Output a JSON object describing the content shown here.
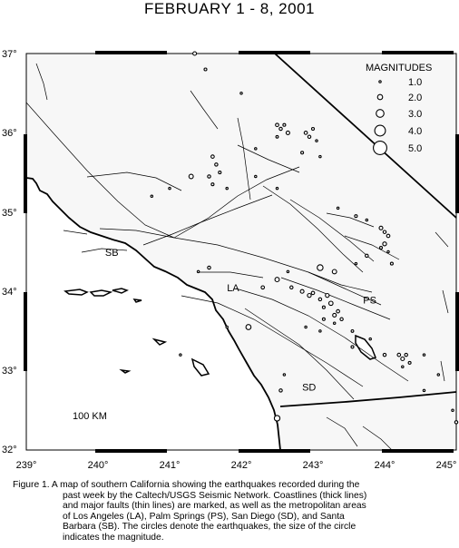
{
  "title": "FEBRUARY 1 - 8, 2001",
  "axes": {
    "lon_ticks": [
      "239°",
      "240°",
      "241°",
      "242°",
      "243°",
      "244°",
      "245°"
    ],
    "lat_ticks": [
      "37°",
      "36°",
      "35°",
      "34°",
      "33°",
      "32°"
    ]
  },
  "legend": {
    "title": "MAGNITUDES",
    "items": [
      {
        "label": "1.0",
        "mag": 1.0
      },
      {
        "label": "2.0",
        "mag": 2.0
      },
      {
        "label": "3.0",
        "mag": 3.0
      },
      {
        "label": "4.0",
        "mag": 4.0
      },
      {
        "label": "5.0",
        "mag": 5.0
      }
    ]
  },
  "places": [
    {
      "abbr": "SB",
      "lon": 240.1,
      "lat": 34.45
    },
    {
      "abbr": "LA",
      "lon": 241.8,
      "lat": 34.0
    },
    {
      "abbr": "PS",
      "lon": 243.7,
      "lat": 33.85
    },
    {
      "abbr": "SD",
      "lon": 242.85,
      "lat": 32.75
    }
  ],
  "scale_label": "100 KM",
  "earthquakes": [
    {
      "lon": 241.35,
      "lat": 37.0,
      "mag": 1.5
    },
    {
      "lon": 241.5,
      "lat": 36.8,
      "mag": 1.2
    },
    {
      "lon": 242.0,
      "lat": 36.5,
      "mag": 1.0
    },
    {
      "lon": 242.5,
      "lat": 36.1,
      "mag": 1.4
    },
    {
      "lon": 242.55,
      "lat": 36.05,
      "mag": 1.3
    },
    {
      "lon": 242.6,
      "lat": 36.1,
      "mag": 1.2
    },
    {
      "lon": 242.65,
      "lat": 36.0,
      "mag": 1.5
    },
    {
      "lon": 242.5,
      "lat": 35.95,
      "mag": 1.1
    },
    {
      "lon": 242.9,
      "lat": 36.0,
      "mag": 1.4
    },
    {
      "lon": 242.95,
      "lat": 35.95,
      "mag": 1.3
    },
    {
      "lon": 243.0,
      "lat": 36.05,
      "mag": 1.2
    },
    {
      "lon": 243.05,
      "lat": 35.9,
      "mag": 1.0
    },
    {
      "lon": 242.2,
      "lat": 35.8,
      "mag": 1.0
    },
    {
      "lon": 242.85,
      "lat": 35.75,
      "mag": 1.2
    },
    {
      "lon": 243.1,
      "lat": 35.7,
      "mag": 1.0
    },
    {
      "lon": 241.6,
      "lat": 35.7,
      "mag": 1.4
    },
    {
      "lon": 241.65,
      "lat": 35.6,
      "mag": 1.3
    },
    {
      "lon": 241.7,
      "lat": 35.5,
      "mag": 1.2
    },
    {
      "lon": 241.55,
      "lat": 35.45,
      "mag": 1.3
    },
    {
      "lon": 241.6,
      "lat": 35.35,
      "mag": 1.2
    },
    {
      "lon": 241.3,
      "lat": 35.45,
      "mag": 1.8
    },
    {
      "lon": 241.0,
      "lat": 35.3,
      "mag": 1.0
    },
    {
      "lon": 242.2,
      "lat": 35.45,
      "mag": 1.0
    },
    {
      "lon": 242.5,
      "lat": 35.3,
      "mag": 1.0
    },
    {
      "lon": 241.8,
      "lat": 35.3,
      "mag": 1.0
    },
    {
      "lon": 240.75,
      "lat": 35.2,
      "mag": 1.0
    },
    {
      "lon": 243.35,
      "lat": 35.05,
      "mag": 1.0
    },
    {
      "lon": 243.6,
      "lat": 34.95,
      "mag": 1.2
    },
    {
      "lon": 243.75,
      "lat": 34.9,
      "mag": 1.0
    },
    {
      "lon": 243.95,
      "lat": 34.8,
      "mag": 1.5
    },
    {
      "lon": 244.0,
      "lat": 34.75,
      "mag": 1.3
    },
    {
      "lon": 244.05,
      "lat": 34.7,
      "mag": 1.4
    },
    {
      "lon": 244.0,
      "lat": 34.6,
      "mag": 1.6
    },
    {
      "lon": 243.95,
      "lat": 34.55,
      "mag": 1.2
    },
    {
      "lon": 244.05,
      "lat": 34.5,
      "mag": 1.0
    },
    {
      "lon": 243.75,
      "lat": 34.45,
      "mag": 1.3
    },
    {
      "lon": 244.1,
      "lat": 34.35,
      "mag": 1.2
    },
    {
      "lon": 243.6,
      "lat": 34.35,
      "mag": 1.0
    },
    {
      "lon": 243.3,
      "lat": 34.25,
      "mag": 1.8
    },
    {
      "lon": 243.1,
      "lat": 34.3,
      "mag": 2.3
    },
    {
      "lon": 242.65,
      "lat": 34.25,
      "mag": 1.0
    },
    {
      "lon": 242.5,
      "lat": 34.15,
      "mag": 1.8
    },
    {
      "lon": 241.55,
      "lat": 34.3,
      "mag": 1.3
    },
    {
      "lon": 241.4,
      "lat": 34.25,
      "mag": 1.0
    },
    {
      "lon": 242.3,
      "lat": 34.05,
      "mag": 1.4
    },
    {
      "lon": 242.7,
      "lat": 34.05,
      "mag": 1.3
    },
    {
      "lon": 242.85,
      "lat": 34.0,
      "mag": 1.5
    },
    {
      "lon": 242.95,
      "lat": 33.95,
      "mag": 1.6
    },
    {
      "lon": 243.0,
      "lat": 33.98,
      "mag": 1.4
    },
    {
      "lon": 243.1,
      "lat": 33.9,
      "mag": 1.3
    },
    {
      "lon": 243.2,
      "lat": 33.95,
      "mag": 1.6
    },
    {
      "lon": 243.25,
      "lat": 33.85,
      "mag": 1.7
    },
    {
      "lon": 243.15,
      "lat": 33.8,
      "mag": 1.2
    },
    {
      "lon": 243.35,
      "lat": 33.75,
      "mag": 1.4
    },
    {
      "lon": 243.3,
      "lat": 33.7,
      "mag": 1.5
    },
    {
      "lon": 243.4,
      "lat": 33.65,
      "mag": 1.3
    },
    {
      "lon": 243.15,
      "lat": 33.65,
      "mag": 1.2
    },
    {
      "lon": 243.3,
      "lat": 33.6,
      "mag": 1.0
    },
    {
      "lon": 243.55,
      "lat": 33.5,
      "mag": 1.1
    },
    {
      "lon": 243.1,
      "lat": 33.5,
      "mag": 1.0
    },
    {
      "lon": 242.9,
      "lat": 33.55,
      "mag": 1.0
    },
    {
      "lon": 243.8,
      "lat": 33.4,
      "mag": 1.0
    },
    {
      "lon": 243.55,
      "lat": 33.3,
      "mag": 1.2
    },
    {
      "lon": 244.0,
      "lat": 33.2,
      "mag": 1.3
    },
    {
      "lon": 244.2,
      "lat": 33.2,
      "mag": 1.4
    },
    {
      "lon": 244.25,
      "lat": 33.15,
      "mag": 1.5
    },
    {
      "lon": 244.3,
      "lat": 33.2,
      "mag": 1.3
    },
    {
      "lon": 244.35,
      "lat": 33.1,
      "mag": 1.2
    },
    {
      "lon": 244.25,
      "lat": 33.05,
      "mag": 1.0
    },
    {
      "lon": 244.55,
      "lat": 33.2,
      "mag": 1.0
    },
    {
      "lon": 244.75,
      "lat": 32.95,
      "mag": 1.0
    },
    {
      "lon": 244.55,
      "lat": 32.75,
      "mag": 1.0
    },
    {
      "lon": 244.95,
      "lat": 32.5,
      "mag": 1.0
    },
    {
      "lon": 245.0,
      "lat": 32.35,
      "mag": 1.3
    },
    {
      "lon": 242.1,
      "lat": 33.55,
      "mag": 2.0
    },
    {
      "lon": 241.8,
      "lat": 33.55,
      "mag": 1.0
    },
    {
      "lon": 242.6,
      "lat": 32.95,
      "mag": 1.0
    },
    {
      "lon": 242.55,
      "lat": 32.75,
      "mag": 1.3
    },
    {
      "lon": 242.5,
      "lat": 32.4,
      "mag": 2.2
    },
    {
      "lon": 241.15,
      "lat": 33.2,
      "mag": 1.0
    }
  ]
}
